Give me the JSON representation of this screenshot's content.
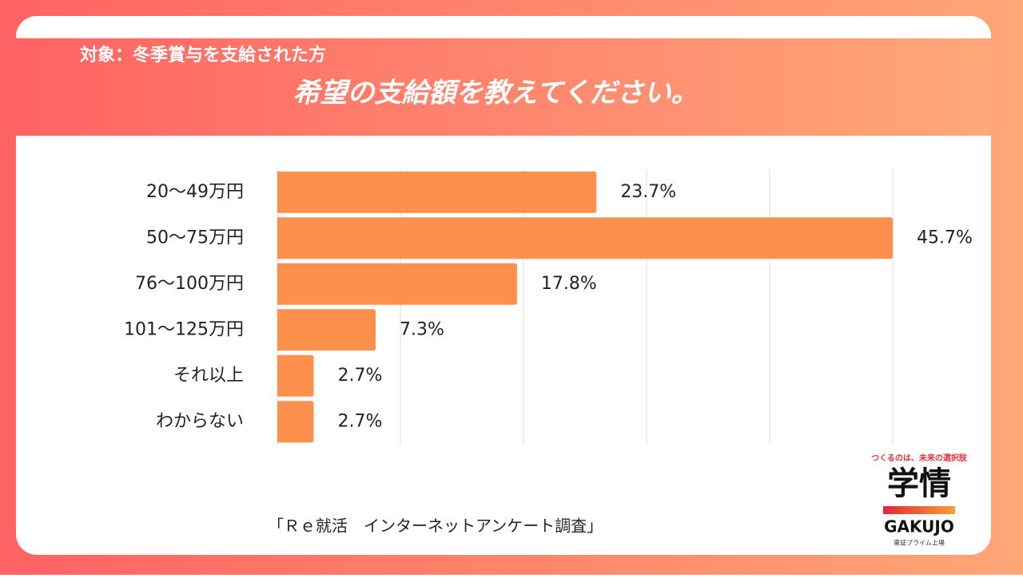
{
  "header": {
    "target": "対象：冬季賞与を支給された方",
    "question": "希望の支給額を教えてください。"
  },
  "chart_data": {
    "type": "hbar",
    "categories": [
      "20～49万円",
      "50～75万円",
      "76～100万円",
      "101～125万円",
      "それ以上",
      "わからない"
    ],
    "values": [
      23.7,
      45.7,
      17.8,
      7.3,
      2.7,
      2.7
    ],
    "value_labels": [
      "23.7%",
      "45.7%",
      "17.8%",
      "7.3%",
      "2.7%",
      "2.7%"
    ],
    "color": "#fe904d",
    "xlim": [
      0,
      45.7
    ],
    "xticks": [
      0,
      9.14,
      18.28,
      27.42,
      36.56,
      45.7
    ],
    "grid": true
  },
  "footnote": "「Ｒｅ就活　インターネットアンケート調査」",
  "logo": {
    "tagline": "つくるのは、未来の選択肢",
    "name": "学情",
    "roman": "GAKUJO",
    "listing": "東証プライム上場"
  }
}
